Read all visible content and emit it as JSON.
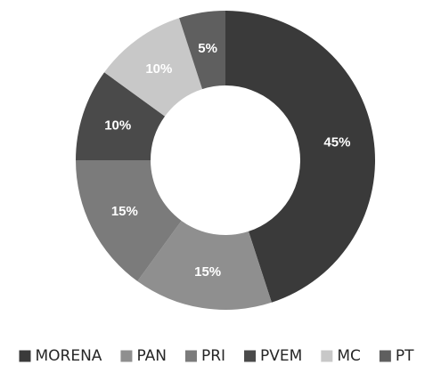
{
  "chart_data": {
    "type": "pie",
    "variant": "donut",
    "title": "",
    "categories": [
      "MORENA",
      "PAN",
      "PRI",
      "PVEM",
      "MC",
      "PT"
    ],
    "values": [
      45,
      15,
      15,
      10,
      10,
      5
    ],
    "labels": [
      "45%",
      "15%",
      "15%",
      "10%",
      "10%",
      "5%"
    ],
    "colors": [
      "#3a3a3a",
      "#8f8f8f",
      "#7b7b7b",
      "#4a4a4a",
      "#c8c8c8",
      "#5f5f5f"
    ],
    "label_colors": [
      "#ffffff",
      "#ffffff",
      "#ffffff",
      "#ffffff",
      "#ffffff",
      "#ffffff"
    ],
    "legend": {
      "position": "bottom",
      "items": [
        "MORENA",
        "PAN",
        "PRI",
        "PVEM",
        "MC",
        "PT"
      ]
    }
  }
}
